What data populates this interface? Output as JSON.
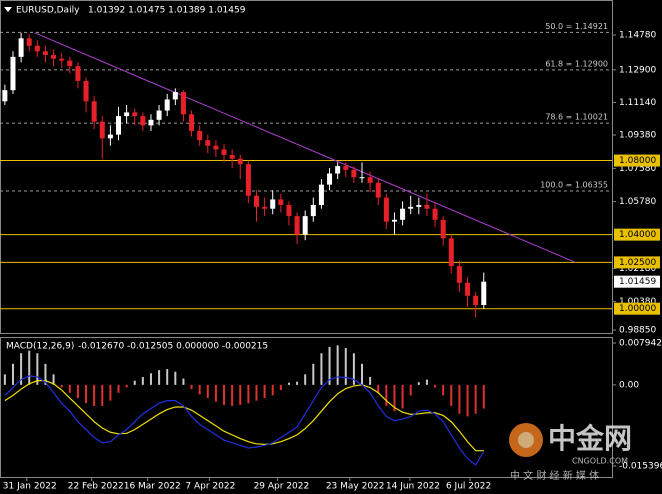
{
  "chart_data": [
    {
      "type": "candlestick",
      "header": {
        "symbol": "EURUSD,Daily",
        "ohlc": "1.01392 1.01475 1.01389 1.01459"
      },
      "open": [
        1.112,
        1.118,
        1.136,
        1.146,
        1.142,
        1.139,
        1.137,
        1.135,
        1.134,
        1.131,
        1.123,
        1.112,
        1.101,
        1.092,
        1.094,
        1.104,
        1.106,
        1.104,
        1.099,
        1.102,
        1.107,
        1.113,
        1.117,
        1.105,
        1.096,
        1.091,
        1.088,
        1.086,
        1.083,
        1.081,
        1.078,
        1.061,
        1.055,
        1.054,
        1.059,
        1.056,
        1.05,
        1.04,
        1.05,
        1.056,
        1.067,
        1.073,
        1.077,
        1.075,
        1.071,
        1.071,
        1.068,
        1.06,
        1.047,
        1.048,
        1.054,
        1.055,
        1.056,
        1.054,
        1.048,
        1.038,
        1.023,
        1.014,
        1.007,
        1.002
      ],
      "high": [
        1.121,
        1.139,
        1.149,
        1.148,
        1.145,
        1.142,
        1.14,
        1.138,
        1.136,
        1.133,
        1.125,
        1.115,
        1.104,
        1.099,
        1.109,
        1.11,
        1.108,
        1.106,
        1.105,
        1.11,
        1.116,
        1.119,
        1.118,
        1.107,
        1.099,
        1.094,
        1.091,
        1.089,
        1.086,
        1.083,
        1.08,
        1.064,
        1.06,
        1.064,
        1.062,
        1.058,
        1.052,
        1.053,
        1.06,
        1.07,
        1.076,
        1.079,
        1.079,
        1.077,
        1.079,
        1.074,
        1.07,
        1.062,
        1.052,
        1.058,
        1.061,
        1.06,
        1.062,
        1.057,
        1.05,
        1.04,
        1.026,
        1.017,
        1.009,
        1.0195
      ],
      "low": [
        1.11,
        1.116,
        1.133,
        1.139,
        1.136,
        1.133,
        1.131,
        1.13,
        1.127,
        1.119,
        1.106,
        1.097,
        1.081,
        1.088,
        1.091,
        1.1,
        1.099,
        1.096,
        1.096,
        1.099,
        1.104,
        1.11,
        1.101,
        1.093,
        1.088,
        1.084,
        1.082,
        1.079,
        1.076,
        1.07,
        1.057,
        1.047,
        1.05,
        1.051,
        1.052,
        1.045,
        1.035,
        1.037,
        1.047,
        1.054,
        1.064,
        1.07,
        1.071,
        1.068,
        1.068,
        1.063,
        1.056,
        1.043,
        1.04,
        1.045,
        1.051,
        1.051,
        1.05,
        1.044,
        1.034,
        1.019,
        1.009,
        1.001,
        0.9952,
        1.0
      ],
      "close": [
        1.118,
        1.136,
        1.146,
        1.142,
        1.139,
        1.137,
        1.135,
        1.134,
        1.131,
        1.123,
        1.112,
        1.101,
        1.092,
        1.094,
        1.104,
        1.106,
        1.104,
        1.099,
        1.102,
        1.107,
        1.113,
        1.117,
        1.105,
        1.096,
        1.091,
        1.088,
        1.086,
        1.083,
        1.081,
        1.078,
        1.061,
        1.055,
        1.054,
        1.059,
        1.056,
        1.05,
        1.04,
        1.05,
        1.056,
        1.067,
        1.073,
        1.077,
        1.075,
        1.071,
        1.071,
        1.068,
        1.06,
        1.047,
        1.048,
        1.054,
        1.055,
        1.056,
        1.054,
        1.048,
        1.038,
        1.023,
        1.014,
        1.007,
        1.002,
        1.01459
      ],
      "up_color": "#ffffff",
      "down_color": "#e8202a",
      "ylim": [
        0.98688,
        1.1667
      ],
      "yticks": [
        {
          "value": 1.1478,
          "label": "1.14780"
        },
        {
          "value": 1.129,
          "label": "1.12900"
        },
        {
          "value": 1.1114,
          "label": "1.11140"
        },
        {
          "value": 1.0938,
          "label": "1.09380"
        },
        {
          "value": 1.0758,
          "label": "1.07580"
        },
        {
          "value": 1.0578,
          "label": "1.05780"
        },
        {
          "value": 1.0218,
          "label": "1.02180"
        },
        {
          "value": 1.0038,
          "label": "1.00380"
        },
        {
          "value": 0.9885,
          "label": "0.98850"
        }
      ],
      "xlim": [
        -0.6,
        74.8
      ],
      "xticks": [
        {
          "value": 2.7,
          "label": "31 Jan 2022"
        },
        {
          "value": 10.7,
          "label": "22 Feb 2022"
        },
        {
          "value": 17.6,
          "label": "16 Mar 2022"
        },
        {
          "value": 25.2,
          "label": "7 Apr 2022"
        },
        {
          "value": 33.6,
          "label": "29 Apr 2022"
        },
        {
          "value": 42.5,
          "label": "23 May 2022"
        },
        {
          "value": 49.9,
          "label": "14 Jun 2022"
        },
        {
          "value": 57.3,
          "label": "6 Jul 2022"
        }
      ],
      "levels": [
        {
          "value": 1.08,
          "label": "1.08000"
        },
        {
          "value": 1.04,
          "label": "1.04000"
        },
        {
          "value": 1.025,
          "label": "1.02500"
        },
        {
          "value": 1.0,
          "label": "1.00000"
        }
      ],
      "level_color": "#e8c000",
      "fib": [
        {
          "value": 1.14921,
          "label": "50.0 = 1.14921"
        },
        {
          "value": 1.129,
          "label": "61.8 = 1.12900"
        },
        {
          "value": 1.10021,
          "label": "78.6 = 1.10021"
        },
        {
          "value": 1.06355,
          "label": "100.0 = 1.06355"
        }
      ],
      "trendline": {
        "x": [
          3.7,
          70.2
        ],
        "y": [
          1.1489,
          1.0252
        ],
        "color": "#b040d0"
      },
      "last_price": {
        "value": 1.01459,
        "label": "1.01459"
      }
    },
    {
      "type": "macd",
      "title": "MACD(12,26,9)",
      "values_text": "-0.012670 -0.012505 0.000000 -0.000215",
      "ylim": [
        -0.0175,
        0.0089
      ],
      "yticks": [
        0.007942,
        {
          "value": 0,
          "label": "0.00"
        },
        -0.015396
      ],
      "histogram": {
        "up_color": "#c8c8c8",
        "down_color": "#e03030",
        "values": [
          0.002,
          0.004,
          0.006,
          0.0065,
          0.006,
          0.004,
          0.002,
          -0.0005,
          -0.0015,
          -0.0025,
          -0.0035,
          -0.004,
          -0.004,
          -0.003,
          -0.0015,
          -0.0005,
          0.0008,
          0.0015,
          0.0022,
          0.0028,
          0.003,
          0.0025,
          0.0012,
          -0.0008,
          -0.0018,
          -0.0025,
          -0.0032,
          -0.0038,
          -0.004,
          -0.0038,
          -0.0035,
          -0.003,
          -0.0025,
          -0.002,
          -0.001,
          0.0004,
          0.0006,
          0.002,
          0.004,
          0.006,
          0.0072,
          0.0075,
          0.007,
          0.006,
          0.004,
          0.0015,
          -0.0015,
          -0.004,
          -0.005,
          -0.0045,
          -0.002,
          0.0005,
          0.001,
          -0.0005,
          -0.002,
          -0.004,
          -0.0055,
          -0.006,
          -0.0055,
          -0.0045
        ]
      },
      "series": [
        {
          "color": "#2030e0",
          "values": [
            -0.002,
            -0.0005,
            0.001,
            0.0017,
            0.0015,
            0.0005,
            -0.0015,
            -0.0035,
            -0.005,
            -0.007,
            -0.0085,
            -0.01,
            -0.011,
            -0.0108,
            -0.0095,
            -0.0085,
            -0.007,
            -0.0055,
            -0.0045,
            -0.0035,
            -0.003,
            -0.003,
            -0.004,
            -0.006,
            -0.0075,
            -0.0085,
            -0.0095,
            -0.0105,
            -0.011,
            -0.0115,
            -0.012,
            -0.0118,
            -0.0115,
            -0.011,
            -0.01,
            -0.009,
            -0.008,
            -0.0055,
            -0.003,
            -0.0005,
            0.001,
            0.0015,
            0.0014,
            0.001,
            0.0,
            -0.0015,
            -0.004,
            -0.006,
            -0.0068,
            -0.0065,
            -0.006,
            -0.005,
            -0.0048,
            -0.0055,
            -0.007,
            -0.0095,
            -0.012,
            -0.014,
            -0.0152,
            -0.0127
          ]
        },
        {
          "color": "#f0e000",
          "values": [
            -0.003,
            -0.002,
            -0.0008,
            0.0002,
            0.0008,
            0.0008,
            0.0002,
            -0.001,
            -0.0025,
            -0.004,
            -0.0055,
            -0.007,
            -0.0082,
            -0.009,
            -0.0093,
            -0.0092,
            -0.0085,
            -0.0075,
            -0.0065,
            -0.0055,
            -0.0047,
            -0.0042,
            -0.0042,
            -0.0048,
            -0.0058,
            -0.0068,
            -0.0078,
            -0.0088,
            -0.0095,
            -0.0102,
            -0.0108,
            -0.0112,
            -0.0113,
            -0.0112,
            -0.0108,
            -0.0102,
            -0.0095,
            -0.0083,
            -0.0068,
            -0.005,
            -0.0032,
            -0.0017,
            -0.0007,
            -0.0002,
            0.0,
            -0.0005,
            -0.0015,
            -0.003,
            -0.0043,
            -0.0052,
            -0.0056,
            -0.0055,
            -0.0053,
            -0.0053,
            -0.0058,
            -0.007,
            -0.0088,
            -0.0108,
            -0.0125,
            -0.0125
          ]
        }
      ]
    }
  ],
  "watermark": {
    "name": "中金网",
    "site": "CNGOLD.COM",
    "slogan": "中 文 财 经 新 媒 体"
  }
}
